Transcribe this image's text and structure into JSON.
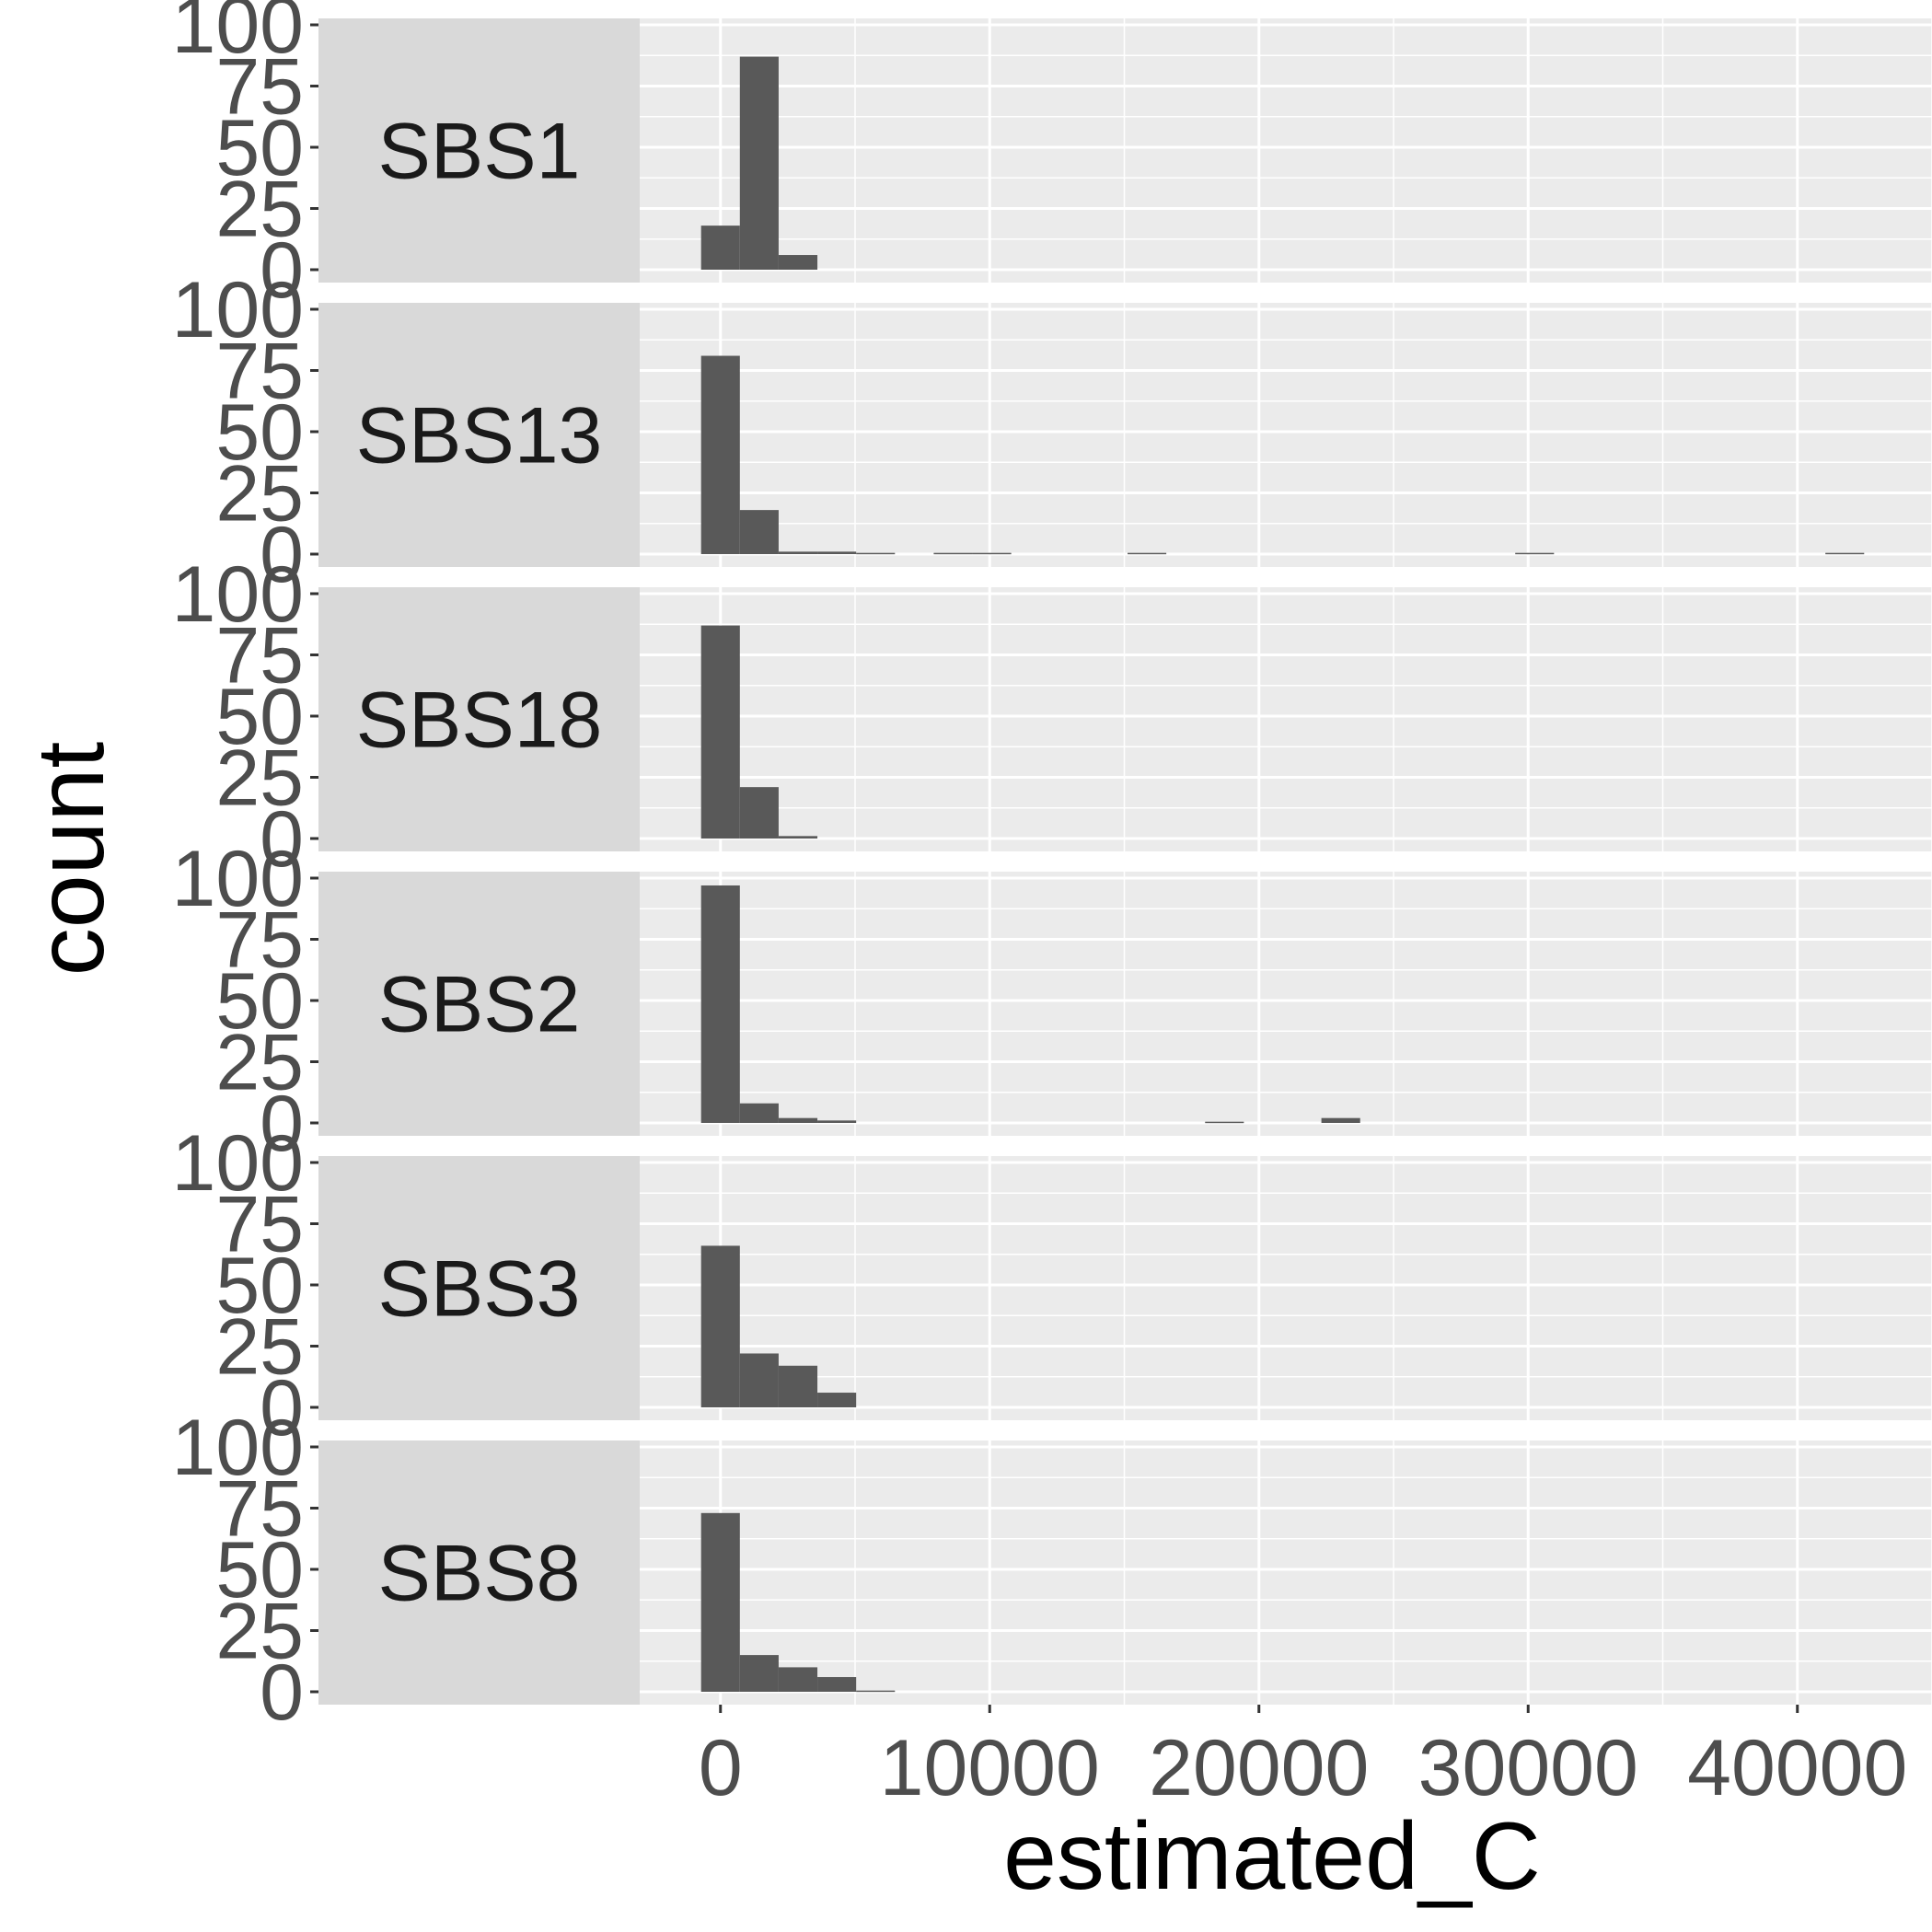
{
  "chart_data": {
    "type": "bar",
    "subtype": "faceted-histogram",
    "xlabel": "estimated_C",
    "ylabel": "count",
    "xlim": [
      -3000,
      45000
    ],
    "ylim": [
      0,
      100
    ],
    "x_ticks": [
      0,
      10000,
      20000,
      30000,
      40000
    ],
    "x_tick_labels": [
      "0",
      "10000",
      "20000",
      "30000",
      "40000"
    ],
    "y_ticks": [
      0,
      25,
      50,
      75,
      100
    ],
    "y_tick_labels": [
      "0",
      "25",
      "50",
      "75",
      "100"
    ],
    "bin_width": 1440,
    "grid": true,
    "legend": "none",
    "colors": {
      "bar": "#595959",
      "panel_bg": "#ebebeb",
      "strip_bg": "#d9d9d9",
      "grid": "#ffffff"
    },
    "facets": [
      {
        "label": "SBS1",
        "bins": [
          {
            "x": 0,
            "count": 18
          },
          {
            "x": 1440,
            "count": 87
          },
          {
            "x": 2880,
            "count": 6
          }
        ]
      },
      {
        "label": "SBS13",
        "bins": [
          {
            "x": 0,
            "count": 81
          },
          {
            "x": 1440,
            "count": 18
          },
          {
            "x": 2880,
            "count": 1
          },
          {
            "x": 4320,
            "count": 1
          },
          {
            "x": 5760,
            "count": 0.5
          },
          {
            "x": 8640,
            "count": 0.5
          },
          {
            "x": 10080,
            "count": 0.5
          },
          {
            "x": 15840,
            "count": 0.5
          },
          {
            "x": 30240,
            "count": 0.5
          },
          {
            "x": 41760,
            "count": 0.5
          }
        ]
      },
      {
        "label": "SBS18",
        "bins": [
          {
            "x": 0,
            "count": 87
          },
          {
            "x": 1440,
            "count": 21
          },
          {
            "x": 2880,
            "count": 1
          }
        ]
      },
      {
        "label": "SBS2",
        "bins": [
          {
            "x": 0,
            "count": 97
          },
          {
            "x": 1440,
            "count": 8
          },
          {
            "x": 2880,
            "count": 2
          },
          {
            "x": 4320,
            "count": 1
          },
          {
            "x": 18720,
            "count": 0.5
          },
          {
            "x": 23040,
            "count": 2
          }
        ]
      },
      {
        "label": "SBS3",
        "bins": [
          {
            "x": 0,
            "count": 66
          },
          {
            "x": 1440,
            "count": 22
          },
          {
            "x": 2880,
            "count": 17
          },
          {
            "x": 4320,
            "count": 6
          }
        ]
      },
      {
        "label": "SBS8",
        "bins": [
          {
            "x": 0,
            "count": 73
          },
          {
            "x": 1440,
            "count": 15
          },
          {
            "x": 2880,
            "count": 10
          },
          {
            "x": 4320,
            "count": 6
          },
          {
            "x": 5760,
            "count": 0.5
          }
        ]
      }
    ]
  }
}
